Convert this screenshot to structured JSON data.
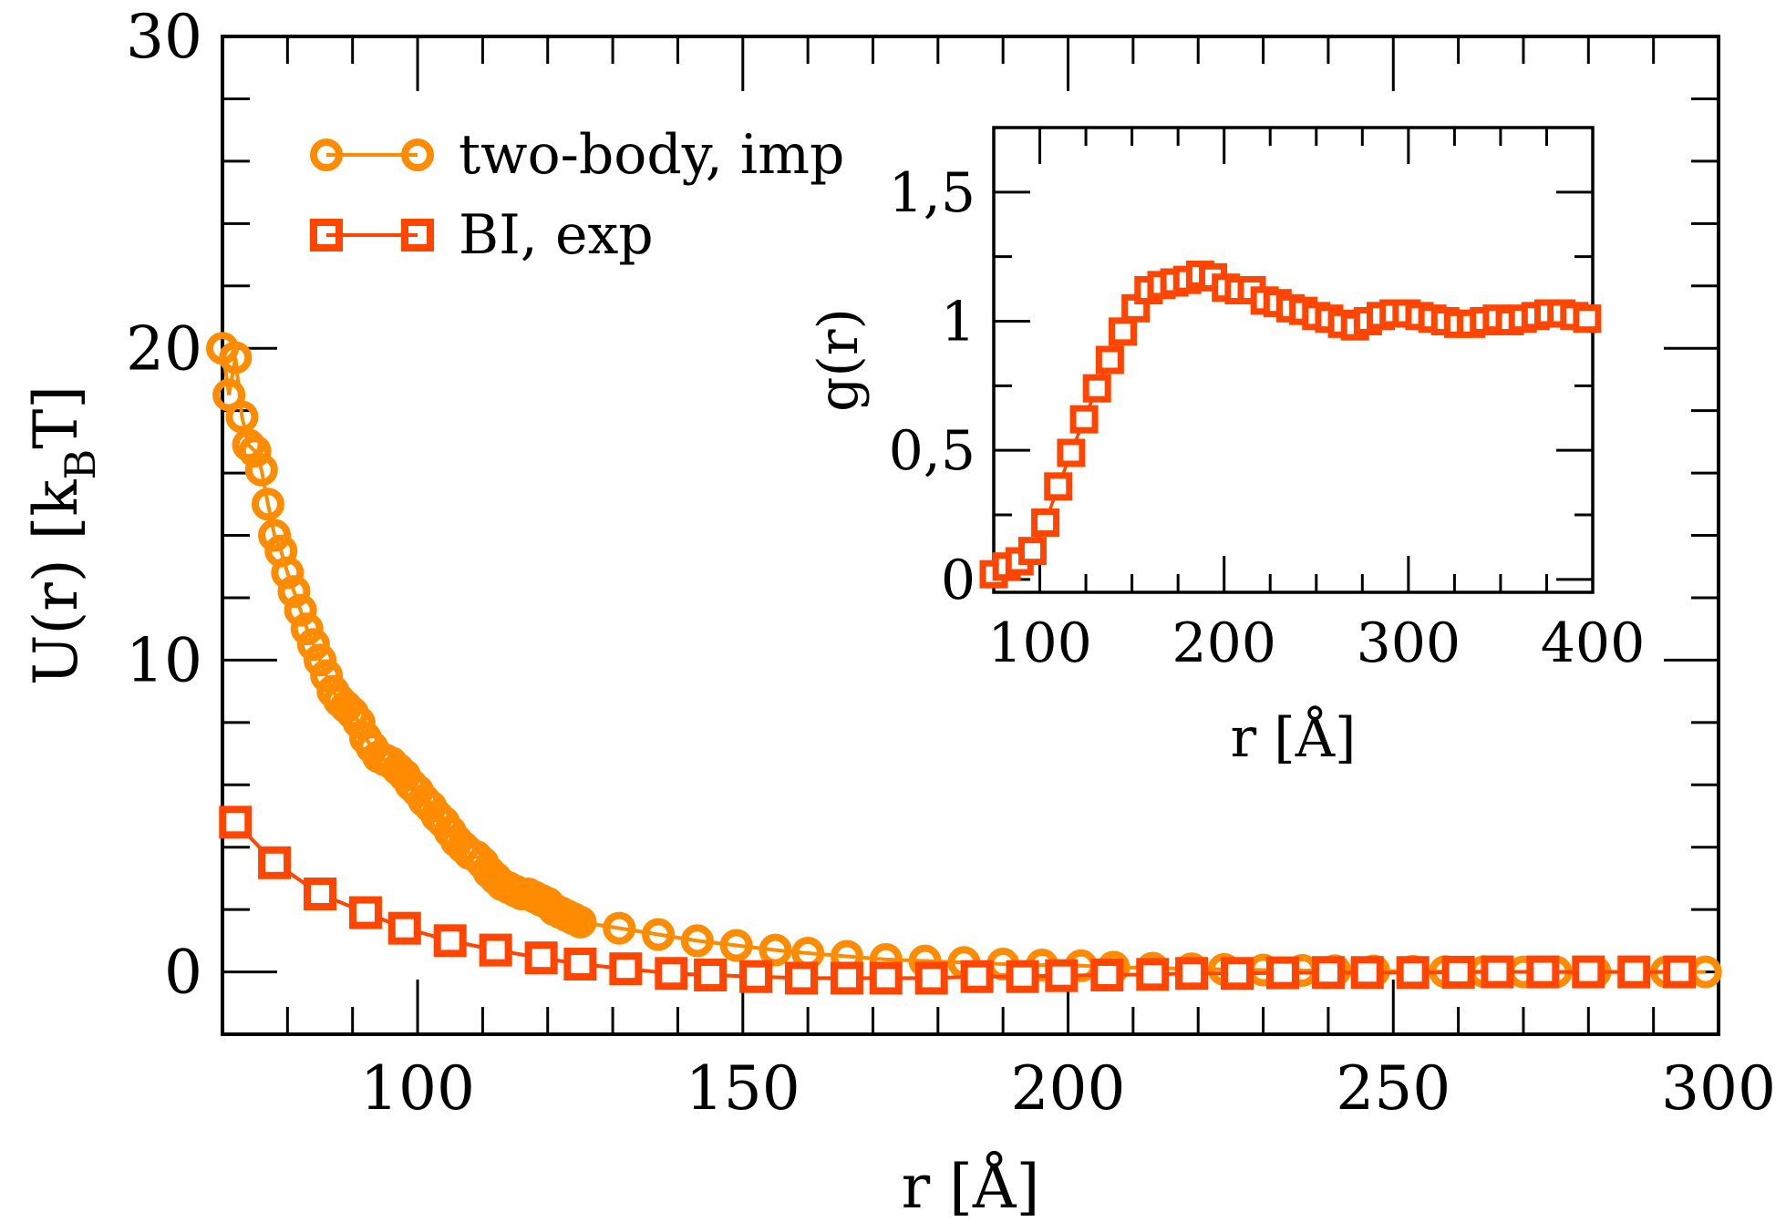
{
  "chart_data": [
    {
      "id": "main",
      "type": "scatter",
      "title": "",
      "xlabel": "r [Å]",
      "ylabel": "U(r) [k",
      "ylabel_sub": "B",
      "ylabel_end": "T]",
      "xlim": [
        70,
        300
      ],
      "ylim": [
        -2,
        30
      ],
      "xticks": [
        100,
        150,
        200,
        250,
        300
      ],
      "xtick_labels": [
        "100",
        "150",
        "200",
        "250",
        "300"
      ],
      "yticks": [
        0,
        10,
        20,
        30
      ],
      "ytick_labels": [
        "0",
        "10",
        "20",
        "30"
      ],
      "legend_position": "top-left",
      "series": [
        {
          "name": "two-body, imp",
          "marker": "circle",
          "color": "#FF8C00",
          "x": [
            70,
            71,
            72,
            73,
            74,
            75,
            76,
            77,
            78,
            79,
            80,
            81,
            82,
            83,
            84,
            85,
            86,
            87,
            88,
            89,
            90,
            91,
            92,
            93,
            94,
            95,
            96,
            97,
            98,
            99,
            100,
            101,
            102,
            103,
            104,
            105,
            106,
            107,
            108,
            109,
            110,
            111,
            112,
            113,
            114,
            115,
            116,
            117,
            118,
            119,
            120,
            121,
            122,
            123,
            124,
            125,
            131,
            137,
            143,
            149,
            155,
            160,
            166,
            172,
            178,
            184,
            190,
            196,
            202,
            207,
            213,
            219,
            224,
            230,
            236,
            241,
            247,
            253,
            258,
            264,
            270,
            275,
            281,
            287,
            292,
            298
          ],
          "y": [
            20.0,
            18.5,
            19.7,
            17.8,
            16.9,
            16.7,
            16.1,
            15.0,
            14.0,
            13.5,
            12.8,
            12.2,
            11.6,
            11.0,
            10.5,
            10.0,
            9.5,
            9.0,
            8.7,
            8.5,
            8.3,
            8.0,
            7.5,
            7.2,
            6.9,
            6.8,
            6.7,
            6.5,
            6.3,
            6.0,
            5.8,
            5.5,
            5.3,
            5.0,
            4.8,
            4.5,
            4.2,
            4.0,
            3.8,
            3.7,
            3.5,
            3.2,
            3.0,
            2.8,
            2.7,
            2.6,
            2.5,
            2.5,
            2.4,
            2.3,
            2.2,
            2.0,
            1.9,
            1.8,
            1.7,
            1.6,
            1.4,
            1.2,
            1.0,
            0.85,
            0.7,
            0.6,
            0.5,
            0.4,
            0.35,
            0.3,
            0.25,
            0.22,
            0.2,
            0.15,
            0.12,
            0.1,
            0.08,
            0.06,
            0.05,
            0.04,
            0.03,
            0.02,
            0.01,
            0.01,
            0.0,
            0.0,
            0.0,
            0.0,
            0.0,
            0.0
          ]
        },
        {
          "name": "BI, exp",
          "marker": "square",
          "color": "#FF4500",
          "x": [
            72,
            78,
            85,
            92,
            98,
            105,
            112,
            119,
            125,
            132,
            139,
            145,
            152,
            159,
            166,
            172,
            179,
            186,
            193,
            199,
            206,
            213,
            219,
            226,
            233,
            240,
            246,
            253,
            260,
            266,
            273,
            280,
            287,
            294
          ],
          "y": [
            4.8,
            3.5,
            2.5,
            1.9,
            1.4,
            1.0,
            0.7,
            0.45,
            0.25,
            0.1,
            -0.05,
            -0.1,
            -0.15,
            -0.2,
            -0.2,
            -0.2,
            -0.2,
            -0.15,
            -0.15,
            -0.12,
            -0.1,
            -0.08,
            -0.05,
            -0.05,
            -0.03,
            -0.02,
            -0.02,
            -0.02,
            -0.01,
            0.0,
            0.0,
            0.0,
            0.0,
            0.0
          ]
        }
      ]
    },
    {
      "id": "inset",
      "type": "scatter",
      "title": "",
      "xlabel": "r [Å]",
      "ylabel": "g(r)",
      "xlim": [
        75,
        400
      ],
      "ylim": [
        -0.05,
        1.75
      ],
      "xticks": [
        100,
        200,
        300,
        400
      ],
      "xtick_labels": [
        "100",
        "200",
        "300",
        "400"
      ],
      "yticks": [
        0,
        0.5,
        1,
        1.5
      ],
      "ytick_labels": [
        "0",
        "0,5",
        "1",
        "1,5"
      ],
      "series": [
        {
          "name": "BI, exp",
          "marker": "square",
          "color": "#FF4500",
          "x": [
            75,
            82,
            89,
            96,
            103,
            110,
            117,
            124,
            131,
            138,
            145,
            152,
            159,
            166,
            173,
            180,
            187,
            194,
            201,
            208,
            215,
            222,
            229,
            236,
            243,
            250,
            257,
            264,
            271,
            278,
            285,
            292,
            299,
            306,
            313,
            320,
            327,
            334,
            341,
            348,
            355,
            362,
            369,
            376,
            383,
            390,
            397
          ],
          "y": [
            0.02,
            0.05,
            0.07,
            0.11,
            0.22,
            0.36,
            0.49,
            0.62,
            0.74,
            0.85,
            0.96,
            1.05,
            1.12,
            1.14,
            1.15,
            1.16,
            1.18,
            1.17,
            1.13,
            1.12,
            1.12,
            1.08,
            1.07,
            1.05,
            1.04,
            1.02,
            1.01,
            0.99,
            0.98,
            1.0,
            1.02,
            1.03,
            1.03,
            1.02,
            1.01,
            1.0,
            0.99,
            0.99,
            1.0,
            1.01,
            1.0,
            1.01,
            1.02,
            1.03,
            1.03,
            1.02,
            1.01
          ]
        }
      ]
    }
  ]
}
